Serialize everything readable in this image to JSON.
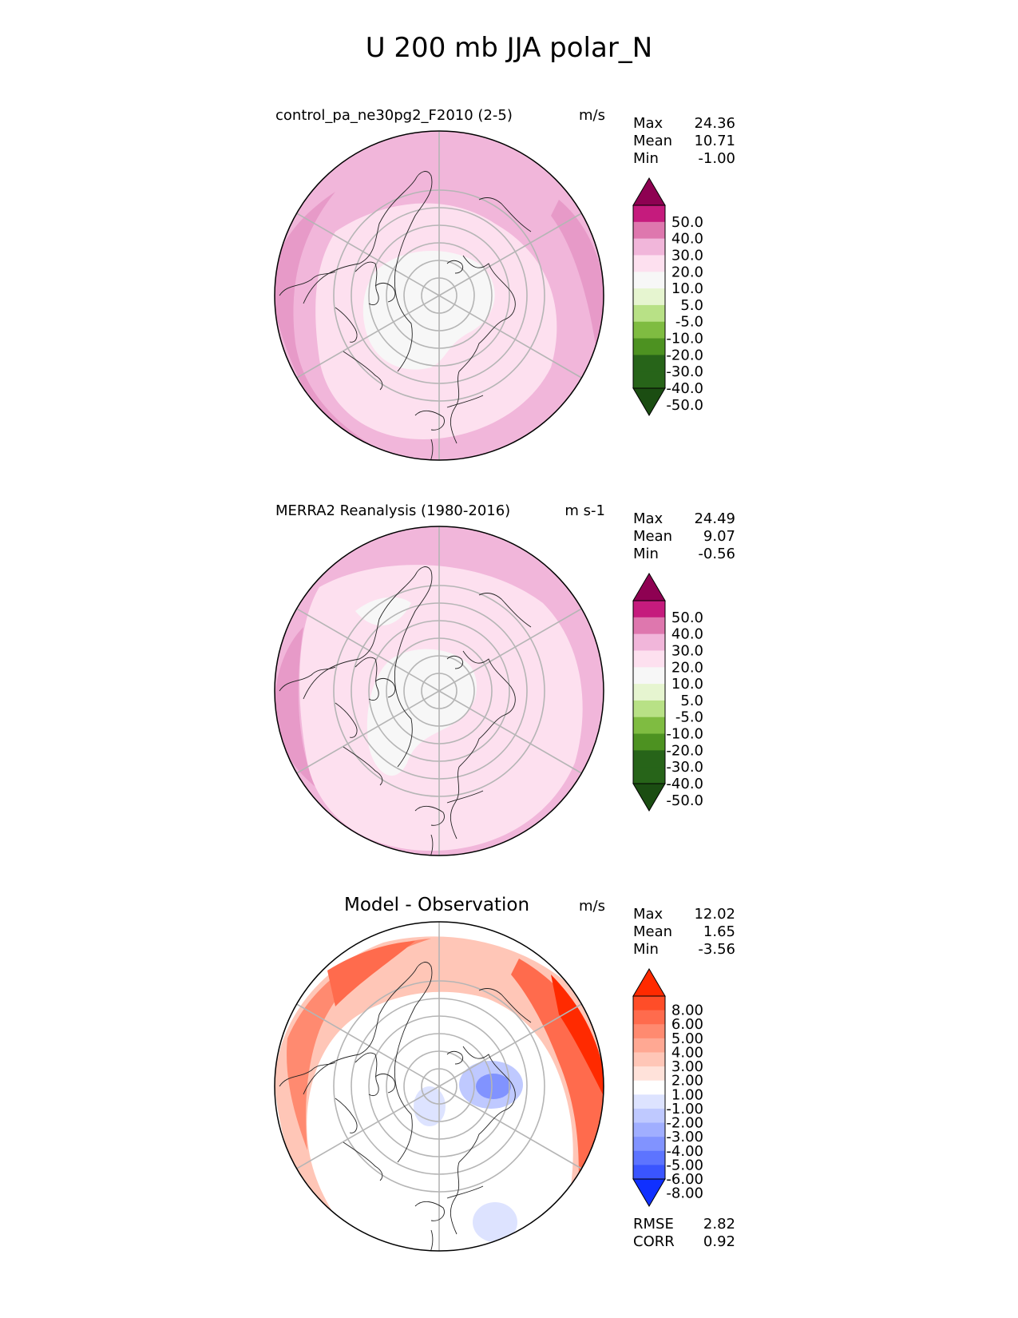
{
  "title": "U 200 mb JJA polar_N",
  "panels": [
    {
      "id": "test",
      "left_title": "control_pa_ne30pg2_F2010 (2-5)",
      "units": "m/s",
      "stats": [
        {
          "label": "Max",
          "value": "24.36"
        },
        {
          "label": "Mean",
          "value": "10.71"
        },
        {
          "label": "Min",
          "value": "-1.00"
        }
      ]
    },
    {
      "id": "ref",
      "left_title": "MERRA2 Reanalysis (1980-2016)",
      "units": "m s-1",
      "stats": [
        {
          "label": "Max",
          "value": "24.49"
        },
        {
          "label": "Mean",
          "value": "9.07"
        },
        {
          "label": "Min",
          "value": "-0.56"
        }
      ]
    },
    {
      "id": "diff",
      "center_title": "Model - Observation",
      "units": "m/s",
      "stats": [
        {
          "label": "Max",
          "value": "12.02"
        },
        {
          "label": "Mean",
          "value": "1.65"
        },
        {
          "label": "Min",
          "value": "-3.56"
        }
      ]
    }
  ],
  "bottom_stats": [
    {
      "label": "RMSE",
      "value": "2.82"
    },
    {
      "label": "CORR",
      "value": "0.92"
    }
  ],
  "chart_data": [
    {
      "type": "heatmap",
      "projection": "north polar stereographic",
      "colorbar": {
        "levels": [
          "50.0",
          "40.0",
          "30.0",
          "20.0",
          "10.0",
          "5.0",
          "-5.0",
          "-10.0",
          "-20.0",
          "-30.0",
          "-40.0",
          "-50.0"
        ],
        "colors": [
          "#8e0152",
          "#c51b7d",
          "#de77ae",
          "#f1b6da",
          "#fde0ef",
          "#f7f7f7",
          "#e6f5d0",
          "#b8e186",
          "#7fbc41",
          "#4d9221",
          "#276419",
          "#276419",
          "#1b4d12"
        ],
        "extend": "both"
      }
    },
    {
      "type": "heatmap",
      "projection": "north polar stereographic",
      "colorbar": {
        "levels": [
          "50.0",
          "40.0",
          "30.0",
          "20.0",
          "10.0",
          "5.0",
          "-5.0",
          "-10.0",
          "-20.0",
          "-30.0",
          "-40.0",
          "-50.0"
        ],
        "colors": [
          "#8e0152",
          "#c51b7d",
          "#de77ae",
          "#f1b6da",
          "#fde0ef",
          "#f7f7f7",
          "#e6f5d0",
          "#b8e186",
          "#7fbc41",
          "#4d9221",
          "#276419",
          "#276419",
          "#1b4d12"
        ],
        "extend": "both"
      }
    },
    {
      "type": "heatmap",
      "projection": "north polar stereographic",
      "colorbar": {
        "levels": [
          "8.00",
          "6.00",
          "5.00",
          "4.00",
          "3.00",
          "2.00",
          "1.00",
          "-1.00",
          "-2.00",
          "-3.00",
          "-4.00",
          "-5.00",
          "-6.00",
          "-8.00"
        ],
        "colors": [
          "#ff2a00",
          "#ff4d28",
          "#ff6b4d",
          "#ff8a70",
          "#ffa893",
          "#ffc6b7",
          "#ffe2da",
          "#ffffff",
          "#dde3ff",
          "#bfc9ff",
          "#a0aeff",
          "#8193ff",
          "#5d74ff",
          "#3a55ff",
          "#1030ff"
        ],
        "extend": "both"
      }
    }
  ]
}
